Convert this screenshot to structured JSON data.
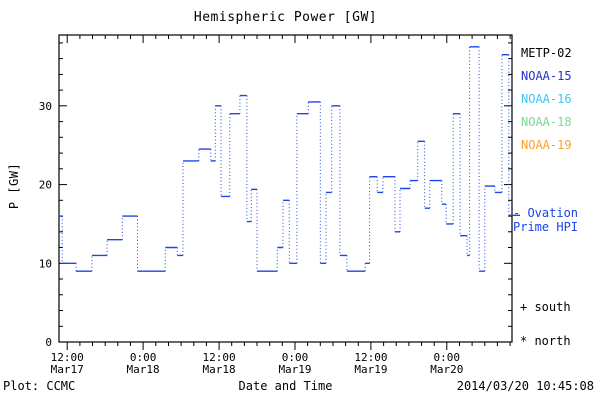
{
  "title": "Hemispheric Power [GW]",
  "legend": {
    "satellites": [
      {
        "label": "METP-02",
        "color": "#000000"
      },
      {
        "label": "NOAA-15",
        "color": "#2433cc"
      },
      {
        "label": "NOAA-16",
        "color": "#3fc6f0"
      },
      {
        "label": "NOAA-18",
        "color": "#7ada96"
      },
      {
        "label": "NOAA-19",
        "color": "#ff9e2a"
      }
    ],
    "model_line1": "- Ovation",
    "model_line2": "Prime HPI",
    "model_color": "#1d44e8",
    "south_marker": "+ south",
    "north_marker": "* north"
  },
  "footer": {
    "credit": "Plot: CCMC",
    "timestamp": "2014/03/20 10:45:08"
  },
  "chart_data": {
    "type": "line",
    "subtype": "step",
    "title": "Hemispheric Power [GW]",
    "xlabel": "Date and Time",
    "ylabel": "P [GW]",
    "x_unit": "hours since Mar17 00:00",
    "xlim": [
      10.7,
      82.3
    ],
    "ylim": [
      0,
      39
    ],
    "grid": false,
    "y_ticks": [
      0,
      10,
      20,
      30
    ],
    "y_minor_step": 2,
    "x_minor_step": 2,
    "x_ticks": [
      {
        "t": 12,
        "time": "12:00",
        "date": "Mar17"
      },
      {
        "t": 24,
        "time": "0:00",
        "date": "Mar18"
      },
      {
        "t": 36,
        "time": "12:00",
        "date": "Mar18"
      },
      {
        "t": 48,
        "time": "0:00",
        "date": "Mar19"
      },
      {
        "t": 60,
        "time": "12:00",
        "date": "Mar19"
      },
      {
        "t": 72,
        "time": "0:00",
        "date": "Mar20"
      }
    ],
    "series": [
      {
        "name": "Ovation Prime HPI",
        "color": "#1d44e8",
        "style": "solid horizontal steps, dotted vertical connectors",
        "points": [
          [
            10.7,
            16
          ],
          [
            11.2,
            10
          ],
          [
            13.4,
            9
          ],
          [
            15.9,
            11
          ],
          [
            18.3,
            13
          ],
          [
            20.7,
            16
          ],
          [
            23.1,
            9
          ],
          [
            27.5,
            12
          ],
          [
            29.4,
            11
          ],
          [
            30.3,
            23
          ],
          [
            32.8,
            24.5
          ],
          [
            34.7,
            23
          ],
          [
            35.4,
            30
          ],
          [
            36.3,
            18.5
          ],
          [
            37.7,
            29
          ],
          [
            39.3,
            31.3
          ],
          [
            40.4,
            15.3
          ],
          [
            41.1,
            19.4
          ],
          [
            42,
            9
          ],
          [
            45.2,
            12
          ],
          [
            46.1,
            18
          ],
          [
            47.1,
            10
          ],
          [
            48.3,
            29
          ],
          [
            50.1,
            30.5
          ],
          [
            52,
            10
          ],
          [
            52.9,
            19
          ],
          [
            53.8,
            30
          ],
          [
            55.1,
            11
          ],
          [
            56.2,
            9
          ],
          [
            59.1,
            10
          ],
          [
            59.8,
            21
          ],
          [
            61,
            19
          ],
          [
            61.9,
            21
          ],
          [
            63.8,
            14
          ],
          [
            64.6,
            19.5
          ],
          [
            66.2,
            20.5
          ],
          [
            67.4,
            25.5
          ],
          [
            68.5,
            17
          ],
          [
            69.3,
            20.5
          ],
          [
            71.2,
            17.5
          ],
          [
            71.9,
            15
          ],
          [
            73,
            29
          ],
          [
            74.1,
            13.5
          ],
          [
            75.2,
            11
          ],
          [
            75.6,
            37.5
          ],
          [
            77.1,
            9
          ],
          [
            78,
            19.8
          ],
          [
            79.6,
            19
          ],
          [
            80.7,
            36.5
          ],
          [
            81.8,
            16.1
          ]
        ]
      }
    ]
  }
}
